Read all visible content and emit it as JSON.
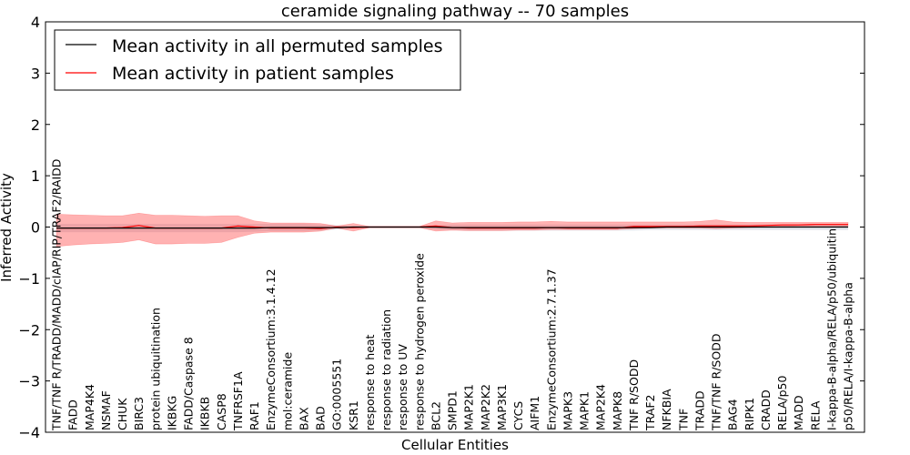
{
  "chart_data": {
    "type": "line",
    "title": "ceramide signaling pathway -- 70 samples",
    "xlabel": "Cellular Entities",
    "ylabel": "Inferred Activity",
    "ylim": [
      -4,
      4
    ],
    "yticks": [
      "−4",
      "−3",
      "−2",
      "−1",
      "0",
      "1",
      "2",
      "3",
      "4"
    ],
    "yticks_values": [
      -4,
      -3,
      -2,
      -1,
      0,
      1,
      2,
      3,
      4
    ],
    "legend": {
      "placement": "top-left",
      "entries": [
        {
          "label": "Mean activity in all permuted samples",
          "color": "#000000"
        },
        {
          "label": "Mean activity in patient samples",
          "color": "#ff0000"
        }
      ]
    },
    "categories": [
      "TNF/TNF R/TRADD/MADD/cIAP/RIP/TRAF2/RAIDD",
      "FADD",
      "MAP4K4",
      "NSMAF",
      "CHUK",
      "BIRC3",
      "protein ubiquitination",
      "IKBKG",
      "FADD/Caspase 8",
      "IKBKB",
      "CASP8",
      "TNFRSF1A",
      "RAF1",
      "EnzymeConsortium:3.1.4.12",
      "mol:ceramide",
      "BAX",
      "BAD",
      "GO:0005551",
      "KSR1",
      "response to heat",
      "response to radiation",
      "response to UV",
      "response to hydrogen peroxide",
      "BCL2",
      "SMPD1",
      "MAP2K1",
      "MAP2K2",
      "MAP3K1",
      "CYCS",
      "AIFM1",
      "EnzymeConsortium:2.7.1.37",
      "MAPK3",
      "MAPK1",
      "MAP2K4",
      "MAPK8",
      "TNF R/SODD",
      "TRAF2",
      "NFKBIA",
      "TNF",
      "TRADD",
      "TNF/TNF R/SODD",
      "BAG4",
      "RIPK1",
      "CRADD",
      "RELA/p50",
      "MADD",
      "RELA",
      "I-kappa-B-alpha/RELA/p50/ubiquitin",
      "p50/RELA/I-kappa-B-alpha"
    ],
    "series": [
      {
        "name": "Mean activity in all permuted samples",
        "color": "#000000",
        "values": [
          -0.02,
          -0.02,
          -0.02,
          -0.02,
          -0.02,
          -0.02,
          -0.02,
          -0.02,
          -0.02,
          -0.02,
          -0.02,
          -0.02,
          -0.02,
          -0.01,
          -0.01,
          -0.01,
          -0.01,
          -0.01,
          0,
          0,
          0,
          0,
          0,
          0,
          -0.01,
          -0.01,
          -0.01,
          -0.01,
          -0.01,
          -0.01,
          -0.01,
          -0.01,
          -0.01,
          -0.01,
          -0.01,
          -0.01,
          -0.01,
          0,
          0,
          0,
          0,
          0,
          0,
          0,
          0,
          0,
          0,
          0,
          0
        ],
        "band_lower": [
          -0.1,
          -0.1,
          -0.1,
          -0.1,
          -0.1,
          -0.1,
          -0.1,
          -0.1,
          -0.1,
          -0.1,
          -0.1,
          -0.1,
          -0.09,
          -0.08,
          -0.08,
          -0.08,
          -0.07,
          -0.05,
          -0.02,
          -0.02,
          -0.02,
          -0.02,
          -0.02,
          -0.05,
          -0.06,
          -0.07,
          -0.07,
          -0.07,
          -0.07,
          -0.07,
          -0.07,
          -0.07,
          -0.07,
          -0.07,
          -0.07,
          -0.07,
          -0.06,
          -0.06,
          -0.06,
          -0.06,
          -0.06,
          -0.06,
          -0.06,
          -0.06,
          -0.06,
          -0.06,
          -0.06,
          -0.06,
          -0.06
        ],
        "band_upper": [
          0.06,
          0.06,
          0.06,
          0.06,
          0.06,
          0.06,
          0.06,
          0.06,
          0.06,
          0.06,
          0.06,
          0.06,
          0.06,
          0.06,
          0.06,
          0.06,
          0.05,
          0.04,
          0.02,
          0.02,
          0.02,
          0.02,
          0.02,
          0.04,
          0.05,
          0.05,
          0.05,
          0.05,
          0.05,
          0.05,
          0.05,
          0.05,
          0.05,
          0.05,
          0.05,
          0.05,
          0.05,
          0.05,
          0.05,
          0.05,
          0.05,
          0.05,
          0.05,
          0.05,
          0.05,
          0.05,
          0.05,
          0.05,
          0.05
        ]
      },
      {
        "name": "Mean activity in patient samples",
        "color": "#ff0000",
        "values": [
          -0.02,
          -0.02,
          -0.02,
          -0.02,
          -0.01,
          0.03,
          -0.02,
          -0.02,
          -0.02,
          -0.02,
          -0.02,
          0.02,
          0.0,
          -0.02,
          -0.02,
          -0.02,
          -0.03,
          0,
          -0.01,
          0,
          0,
          0,
          0,
          0.02,
          -0.01,
          -0.02,
          -0.02,
          -0.02,
          -0.02,
          -0.02,
          -0.01,
          -0.02,
          -0.02,
          -0.02,
          -0.02,
          0.01,
          0.01,
          0.01,
          0.01,
          0.02,
          0.02,
          0.02,
          0.02,
          0.03,
          0.04,
          0.04,
          0.05,
          0.05,
          0.05
        ],
        "band_lower": [
          -0.38,
          -0.35,
          -0.33,
          -0.32,
          -0.3,
          -0.25,
          -0.33,
          -0.33,
          -0.32,
          -0.32,
          -0.3,
          -0.2,
          -0.12,
          -0.1,
          -0.1,
          -0.1,
          -0.08,
          -0.02,
          -0.08,
          -0.01,
          -0.01,
          -0.01,
          -0.01,
          -0.08,
          -0.06,
          -0.07,
          -0.07,
          -0.07,
          -0.06,
          -0.06,
          -0.05,
          -0.05,
          -0.05,
          -0.05,
          -0.05,
          -0.03,
          -0.02,
          -0.02,
          -0.02,
          -0.02,
          -0.03,
          -0.02,
          -0.01,
          0,
          0.01,
          0.02,
          0.02,
          0.02,
          0.02
        ],
        "band_upper": [
          0.25,
          0.24,
          0.23,
          0.22,
          0.22,
          0.27,
          0.23,
          0.23,
          0.22,
          0.21,
          0.22,
          0.22,
          0.12,
          0.08,
          0.08,
          0.08,
          0.07,
          0.02,
          0.07,
          0.01,
          0.01,
          0.01,
          0.01,
          0.12,
          0.08,
          0.09,
          0.09,
          0.09,
          0.1,
          0.1,
          0.11,
          0.1,
          0.1,
          0.1,
          0.1,
          0.1,
          0.1,
          0.1,
          0.1,
          0.11,
          0.14,
          0.1,
          0.09,
          0.09,
          0.09,
          0.09,
          0.09,
          0.09,
          0.09
        ]
      }
    ]
  }
}
